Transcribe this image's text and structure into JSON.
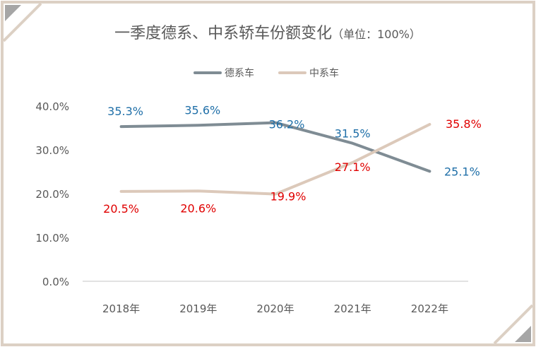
{
  "colors": {
    "frame": "#dcd0c4",
    "corner": "#a6a6a6",
    "german_line": "#7f8c94",
    "chinese_line": "#dcc9ba",
    "german_label": "#1f6fa8",
    "chinese_label": "#e00000",
    "axis": "#d9d9d9",
    "text": "#595959"
  },
  "chart_data": {
    "type": "line",
    "title": "一季度德系、中系轿车份额变化",
    "title_unit": "（单位：100%）",
    "categories": [
      "2018年",
      "2019年",
      "2020年",
      "2021年",
      "2022年"
    ],
    "ylim": [
      0,
      40
    ],
    "yticks": [
      "0.0%",
      "10.0%",
      "20.0%",
      "30.0%",
      "40.0%"
    ],
    "grid": false,
    "legend_position": "top",
    "series": [
      {
        "name": "德系车",
        "values": [
          35.3,
          35.6,
          36.2,
          31.5,
          25.1
        ],
        "labels": [
          "35.3%",
          "35.6%",
          "36.2%",
          "31.5%",
          "25.1%"
        ]
      },
      {
        "name": "中系车",
        "values": [
          20.5,
          20.6,
          19.9,
          27.1,
          35.8
        ],
        "labels": [
          "20.5%",
          "20.6%",
          "19.9%",
          "27.1%",
          "35.8%"
        ]
      }
    ]
  }
}
